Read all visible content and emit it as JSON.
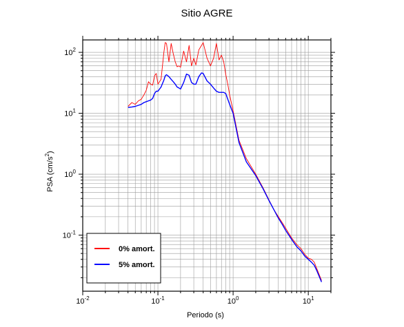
{
  "chart_data": {
    "type": "line",
    "title": "Sitio AGRE",
    "xlabel": "Periodo (s)",
    "ylabel_base": "PSA (cm/s",
    "ylabel_exp": "2",
    "ylabel_close": ")",
    "xscale": "log",
    "yscale": "log",
    "xlim": [
      0.01,
      20
    ],
    "ylim": [
      0.012,
      160
    ],
    "grid": true,
    "legend_position": "lower-left",
    "x_ticks": [
      {
        "base": "10",
        "exp": "-2",
        "value": 0.01
      },
      {
        "base": "10",
        "exp": "-1",
        "value": 0.1
      },
      {
        "base": "10",
        "exp": "0",
        "value": 1
      },
      {
        "base": "10",
        "exp": "1",
        "value": 10
      }
    ],
    "y_ticks": [
      {
        "base": "10",
        "exp": "-1",
        "value": 0.1
      },
      {
        "base": "10",
        "exp": "0",
        "value": 1
      },
      {
        "base": "10",
        "exp": "1",
        "value": 10
      },
      {
        "base": "10",
        "exp": "2",
        "value": 100
      }
    ],
    "series": [
      {
        "name": "0% amort.",
        "color": "#ff0000",
        "x": [
          0.04,
          0.045,
          0.05,
          0.055,
          0.06,
          0.065,
          0.07,
          0.075,
          0.08,
          0.085,
          0.09,
          0.095,
          0.1,
          0.11,
          0.12,
          0.125,
          0.13,
          0.14,
          0.15,
          0.16,
          0.17,
          0.18,
          0.19,
          0.2,
          0.22,
          0.24,
          0.26,
          0.28,
          0.3,
          0.32,
          0.35,
          0.38,
          0.4,
          0.45,
          0.5,
          0.55,
          0.6,
          0.65,
          0.7,
          0.75,
          0.8,
          0.85,
          0.9,
          1.0,
          1.2,
          1.5,
          2.0,
          2.5,
          3.0,
          3.5,
          4.0,
          4.5,
          5.0,
          6.0,
          7.0,
          8.0,
          9.0,
          10.0,
          11.0,
          12.0,
          13.0,
          15.0
        ],
        "y": [
          13,
          15,
          14,
          16,
          17,
          20,
          24,
          33,
          30,
          29,
          41,
          45,
          30,
          36,
          100,
          145,
          140,
          70,
          140,
          95,
          70,
          58,
          60,
          57,
          105,
          70,
          130,
          60,
          80,
          62,
          110,
          130,
          145,
          80,
          60,
          80,
          140,
          75,
          90,
          70,
          43,
          30,
          20,
          11,
          3.6,
          1.8,
          1.0,
          0.6,
          0.38,
          0.26,
          0.2,
          0.16,
          0.13,
          0.09,
          0.07,
          0.06,
          0.048,
          0.042,
          0.04,
          0.036,
          0.028,
          0.018
        ]
      },
      {
        "name": "5% amort.",
        "color": "#0000ff",
        "x": [
          0.04,
          0.045,
          0.05,
          0.055,
          0.06,
          0.065,
          0.07,
          0.075,
          0.08,
          0.085,
          0.09,
          0.095,
          0.1,
          0.11,
          0.12,
          0.125,
          0.13,
          0.14,
          0.15,
          0.16,
          0.17,
          0.18,
          0.19,
          0.2,
          0.22,
          0.24,
          0.26,
          0.28,
          0.3,
          0.32,
          0.35,
          0.38,
          0.4,
          0.45,
          0.5,
          0.55,
          0.6,
          0.65,
          0.7,
          0.75,
          0.8,
          0.85,
          0.9,
          1.0,
          1.2,
          1.5,
          2.0,
          2.5,
          3.0,
          3.5,
          4.0,
          4.5,
          5.0,
          6.0,
          7.0,
          8.0,
          9.0,
          10.0,
          11.0,
          12.0,
          13.0,
          15.0
        ],
        "y": [
          12.5,
          12.7,
          13,
          13.5,
          14,
          15,
          15.5,
          16,
          16.5,
          17.5,
          21,
          23,
          23,
          27,
          35,
          41,
          43,
          40,
          36,
          33,
          30,
          27,
          26,
          25,
          32,
          44,
          42,
          32,
          30,
          30,
          40,
          46,
          45,
          34,
          30,
          26,
          23,
          22,
          22,
          22,
          21,
          17,
          14,
          10,
          3.3,
          1.6,
          0.95,
          0.58,
          0.37,
          0.26,
          0.19,
          0.15,
          0.12,
          0.085,
          0.065,
          0.055,
          0.045,
          0.04,
          0.036,
          0.032,
          0.026,
          0.017
        ]
      }
    ]
  }
}
